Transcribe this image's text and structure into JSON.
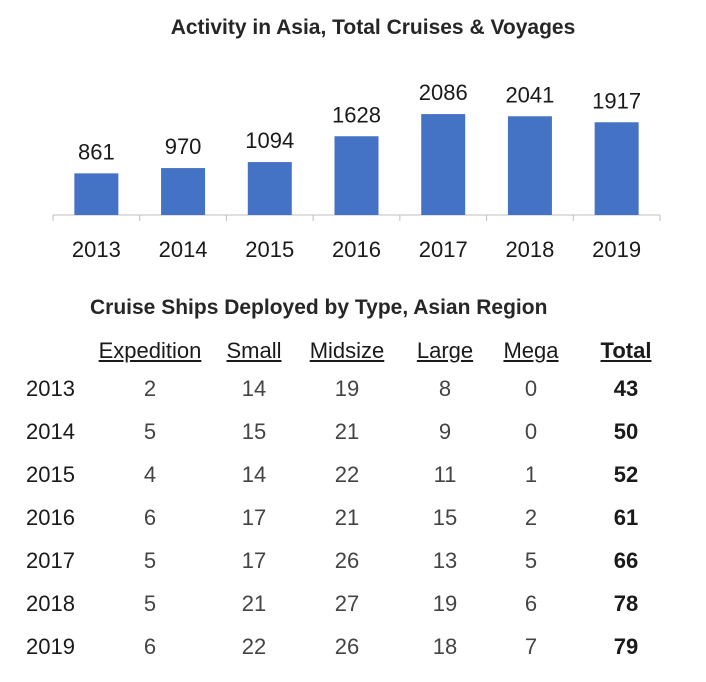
{
  "chart_data": {
    "type": "bar",
    "title": "Activity in Asia,  Total Cruises & Voyages",
    "categories": [
      "2013",
      "2014",
      "2015",
      "2016",
      "2017",
      "2018",
      "2019"
    ],
    "values": [
      861,
      970,
      1094,
      1628,
      2086,
      2041,
      1917
    ],
    "color": "#4472C4",
    "grid": false,
    "ylim": [
      0,
      2150
    ]
  },
  "table": {
    "title": "Cruise Ships Deployed by Type, Asian Region",
    "headers": [
      "Expedition",
      "Small",
      "Midsize",
      "Large",
      "Mega",
      "Total"
    ],
    "rows": [
      {
        "year": "2013",
        "values": [
          "2",
          "14",
          "19",
          "8",
          "0"
        ],
        "total": "43"
      },
      {
        "year": "2014",
        "values": [
          "5",
          "15",
          "21",
          "9",
          "0"
        ],
        "total": "50"
      },
      {
        "year": "2015",
        "values": [
          "4",
          "14",
          "22",
          "11",
          "1"
        ],
        "total": "52"
      },
      {
        "year": "2016",
        "values": [
          "6",
          "17",
          "21",
          "15",
          "2"
        ],
        "total": "61"
      },
      {
        "year": "2017",
        "values": [
          "5",
          "17",
          "26",
          "13",
          "5"
        ],
        "total": "66"
      },
      {
        "year": "2018",
        "values": [
          "5",
          "21",
          "27",
          "19",
          "6"
        ],
        "total": "78"
      },
      {
        "year": "2019",
        "values": [
          "6",
          "22",
          "26",
          "18",
          "7"
        ],
        "total": "79"
      }
    ]
  }
}
